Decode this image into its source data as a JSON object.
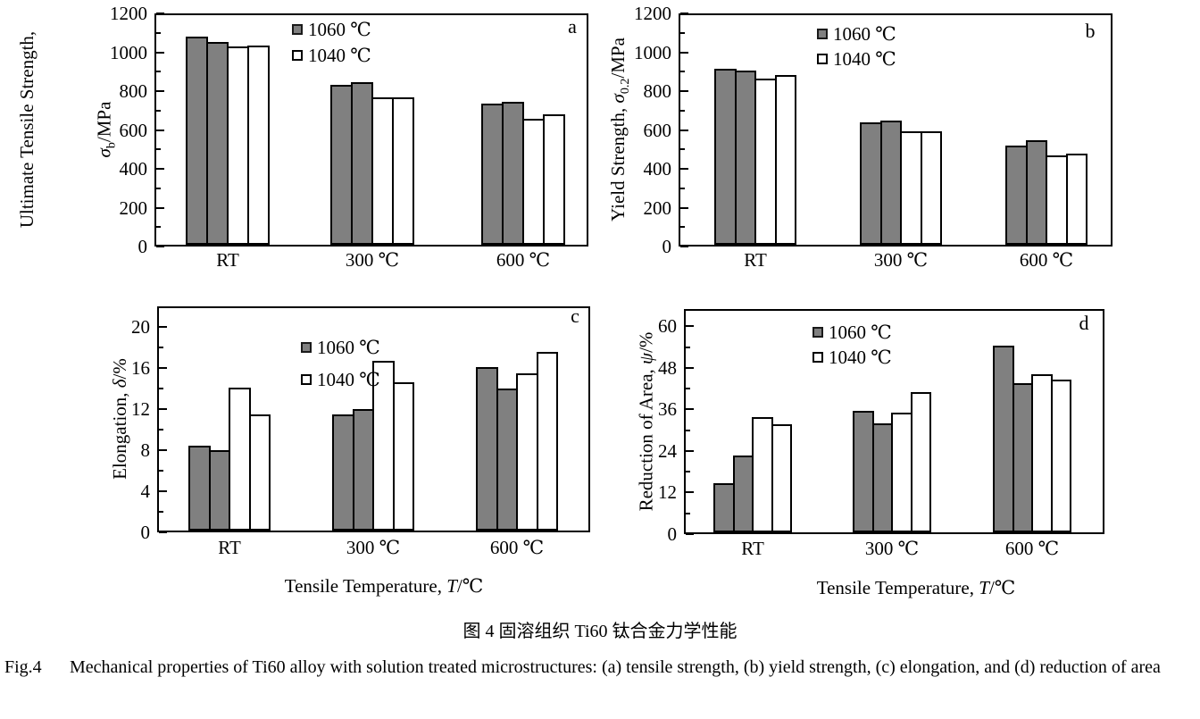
{
  "captions": {
    "caption_zh": "图 4  固溶组织 Ti60 钛合金力学性能",
    "fig_label": "Fig.4",
    "fig_text": "Mechanical properties of Ti60 alloy with solution treated microstructures: (a) tensile strength, (b) yield strength, (c) elongation, and (d) reduction of area"
  },
  "colors": {
    "bar_fill_1060": "#808080",
    "bar_fill_1040": "#ffffff",
    "axis": "#000000",
    "background": "#ffffff"
  },
  "legend_labels": [
    "1060 ℃",
    "1040 ℃"
  ],
  "chart_data": [
    {
      "id": "a",
      "panel_label": "a",
      "type": "bar",
      "categories": [
        "RT",
        "300 ℃",
        "600 ℃"
      ],
      "series": [
        {
          "name": "1060 ℃",
          "values": [
            [
              1080,
              1055
            ],
            [
              833,
              847
            ],
            [
              737,
              744
            ]
          ]
        },
        {
          "name": "1040 ℃",
          "values": [
            [
              1032,
              1036
            ],
            [
              770,
              770
            ],
            [
              657,
              682
            ]
          ]
        }
      ],
      "ylabel_lines": [
        {
          "pre": "Ultimate Tensile Strength,"
        },
        {
          "sym": "σ",
          "sub": "b",
          "post": "/MPa"
        }
      ],
      "ylim": [
        0,
        1200
      ],
      "yticks": [
        0,
        200,
        400,
        600,
        800,
        1000,
        1200
      ],
      "yticks_minor": [
        100,
        300,
        500,
        700,
        900,
        1100
      ],
      "grid": false,
      "legend_position": "top-center-inside"
    },
    {
      "id": "b",
      "panel_label": "b",
      "type": "bar",
      "categories": [
        "RT",
        "300 ℃",
        "600 ℃"
      ],
      "series": [
        {
          "name": "1060 ℃",
          "values": [
            [
              916,
              906
            ],
            [
              641,
              648
            ],
            [
              519,
              545
            ]
          ]
        },
        {
          "name": "1040 ℃",
          "values": [
            [
              866,
              882
            ],
            [
              593,
              593
            ],
            [
              471,
              478
            ]
          ]
        }
      ],
      "ylabel_lines": [
        {
          "pre": "Yield Strength, ",
          "sym": "σ",
          "sub": "0.2",
          "post": "/MPa"
        }
      ],
      "ylim": [
        0,
        1200
      ],
      "yticks": [
        0,
        200,
        400,
        600,
        800,
        1000,
        1200
      ],
      "yticks_minor": [
        100,
        300,
        500,
        700,
        900,
        1100
      ],
      "grid": false,
      "legend_position": "top-center-inside"
    },
    {
      "id": "c",
      "panel_label": "c",
      "type": "bar",
      "categories": [
        "RT",
        "300 ℃",
        "600 ℃"
      ],
      "series": [
        {
          "name": "1060 ℃",
          "values": [
            [
              8.4,
              8.0
            ],
            [
              11.5,
              12.0
            ],
            [
              16.1,
              14.0
            ]
          ]
        },
        {
          "name": "1040 ℃",
          "values": [
            [
              14.1,
              11.5
            ],
            [
              16.7,
              14.6
            ],
            [
              15.5,
              17.6
            ]
          ]
        }
      ],
      "ylabel_lines": [
        {
          "pre": "Elongation, ",
          "sym": "δ",
          "post": "/%"
        }
      ],
      "xtitle": {
        "pre": "Tensile Temperature, ",
        "sym": "T",
        "post": "/℃"
      },
      "ylim": [
        0,
        22
      ],
      "yticks": [
        0,
        4,
        8,
        12,
        16,
        20
      ],
      "yticks_minor": [
        2,
        6,
        10,
        14,
        18
      ],
      "grid": false,
      "legend_position": "top-center-inside"
    },
    {
      "id": "d",
      "panel_label": "d",
      "type": "bar",
      "categories": [
        "RT",
        "300 ℃",
        "600 ℃"
      ],
      "series": [
        {
          "name": "1060 ℃",
          "values": [
            [
              14.7,
              22.6
            ],
            [
              35.7,
              32.0
            ],
            [
              54.5,
              43.7
            ]
          ]
        },
        {
          "name": "1040 ℃",
          "values": [
            [
              33.8,
              31.7
            ],
            [
              35.0,
              41.0
            ],
            [
              46.2,
              44.7
            ]
          ]
        }
      ],
      "ylabel_lines": [
        {
          "pre": "Reduction of Area, ",
          "sym": "ψ",
          "post": "/%"
        }
      ],
      "xtitle": {
        "pre": "Tensile Temperature, ",
        "sym": "T",
        "post": "/℃"
      },
      "ylim": [
        0,
        65
      ],
      "yticks": [
        0,
        12,
        24,
        36,
        48,
        60
      ],
      "yticks_minor": [
        6,
        18,
        30,
        42,
        54
      ],
      "grid": false,
      "legend_position": "top-center-inside"
    }
  ]
}
